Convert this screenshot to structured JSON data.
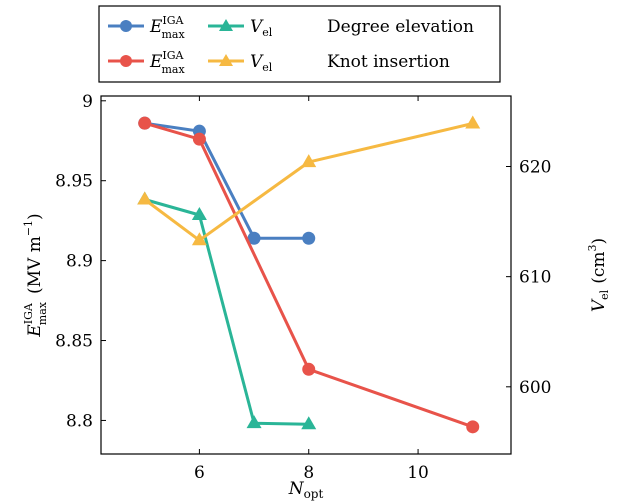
{
  "chart_data": {
    "type": "line",
    "xlabel": "N_opt",
    "ylabel_left": "E_max^IGA (MV m^-1)",
    "ylabel_right": "V_el (cm^3)",
    "xlim": [
      4.2,
      11.7
    ],
    "ylim_left": [
      8.779,
      9.003
    ],
    "ylim_right": [
      593.9,
      626.4
    ],
    "x_ticks": [
      6,
      8,
      10
    ],
    "y_left_ticks": [
      8.8,
      8.85,
      8.9,
      8.95,
      9
    ],
    "y_right_ticks": [
      600,
      610,
      620
    ],
    "x_tick_labels": [
      "6",
      "8",
      "10"
    ],
    "y_left_tick_labels": [
      "8.8",
      "8.85",
      "8.9",
      "8.95",
      "9"
    ],
    "y_right_tick_labels": [
      "600",
      "610",
      "620"
    ],
    "grid": false,
    "legend_position": "top",
    "legend": {
      "row_labels": [
        "Degree elevation",
        "Knot insertion"
      ]
    },
    "series": [
      {
        "key": "emax_de",
        "name": "E_max^IGA",
        "axis": "left",
        "method": "Degree elevation",
        "color": "#4a7fc1",
        "marker": "circle",
        "x": [
          5,
          6,
          7,
          8
        ],
        "y": [
          8.986,
          8.981,
          8.914,
          8.914
        ]
      },
      {
        "key": "vel_de",
        "name": "V_el",
        "axis": "right",
        "method": "Degree elevation",
        "color": "#2ab597",
        "marker": "triangle",
        "x": [
          5,
          6,
          7,
          8
        ],
        "y": [
          617.0,
          615.6,
          596.7,
          596.6
        ]
      },
      {
        "key": "emax_ki",
        "name": "E_max^IGA",
        "axis": "left",
        "method": "Knot insertion",
        "color": "#e8534a",
        "marker": "circle",
        "x": [
          5,
          6,
          8,
          11
        ],
        "y": [
          8.986,
          8.976,
          8.832,
          8.796
        ]
      },
      {
        "key": "vel_ki",
        "name": "V_el",
        "axis": "right",
        "method": "Knot insertion",
        "color": "#f6b942",
        "marker": "triangle",
        "x": [
          5,
          6,
          8,
          11
        ],
        "y": [
          617.0,
          613.3,
          620.4,
          623.9
        ]
      }
    ]
  }
}
